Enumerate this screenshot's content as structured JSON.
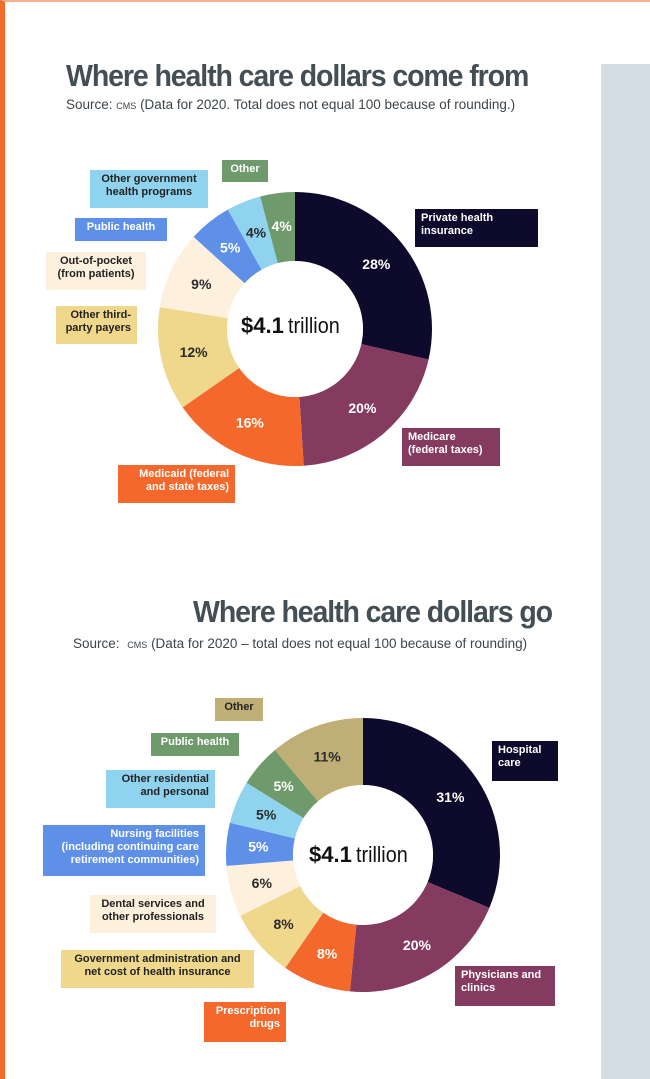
{
  "charts": [
    {
      "title": "Where health care dollars come from",
      "source_prefix": "Source:",
      "source_org": "CMS",
      "source_rest": "(Data for 2020. Total does not equal 100 because of rounding.)",
      "center_amount": "$4.1",
      "center_unit": "trillion"
    },
    {
      "title": "Where health care dollars go",
      "source_prefix": "Source:",
      "source_org": "CMS",
      "source_rest": "(Data for 2020 – total does not equal 100 because of rounding)",
      "center_amount": "$4.1",
      "center_unit": "trillion"
    }
  ],
  "chart_data": [
    {
      "type": "pie",
      "title": "Where health care dollars come from",
      "total": "$4.1 trillion",
      "slices": [
        {
          "label": "Private health insurance",
          "value": 28,
          "display": "28%",
          "color": "#0d0a2c"
        },
        {
          "label": "Medicare (federal taxes)",
          "value": 20,
          "display": "20%",
          "color": "#843b5f"
        },
        {
          "label": "Medicaid (federal and state taxes)",
          "value": 16,
          "display": "16%",
          "color": "#f4692b"
        },
        {
          "label": "Other third-party payers",
          "value": 12,
          "display": "12%",
          "color": "#efd88c"
        },
        {
          "label": "Out-of-pocket (from patients)",
          "value": 9,
          "display": "9%",
          "color": "#fdf0dc"
        },
        {
          "label": "Public health",
          "value": 5,
          "display": "5%",
          "color": "#5f90e8"
        },
        {
          "label": "Other government health programs",
          "value": 4,
          "display": "4%",
          "color": "#8fd3ee"
        },
        {
          "label": "Other",
          "value": 4,
          "display": "4%",
          "color": "#6f9a6c"
        }
      ]
    },
    {
      "type": "pie",
      "title": "Where health care dollars go",
      "total": "$4.1 trillion",
      "slices": [
        {
          "label": "Hospital care",
          "value": 31,
          "display": "31%",
          "color": "#0d0a2c"
        },
        {
          "label": "Physicians and clinics",
          "value": 20,
          "display": "20%",
          "color": "#843b5f"
        },
        {
          "label": "Prescription drugs",
          "value": 8,
          "display": "8%",
          "color": "#f4692b"
        },
        {
          "label": "Government administration and net cost of health insurance",
          "value": 8,
          "display": "8%",
          "color": "#efd88c"
        },
        {
          "label": "Dental services and other professionals",
          "value": 6,
          "display": "6%",
          "color": "#fdf0dc"
        },
        {
          "label": "Nursing facilities (including continuing care retirement communities)",
          "value": 5,
          "display": "5%",
          "color": "#5f90e8"
        },
        {
          "label": "Other residential and personal",
          "value": 5,
          "display": "5%",
          "color": "#8fd3ee"
        },
        {
          "label": "Public health",
          "value": 5,
          "display": "5%",
          "color": "#6f9a6c"
        },
        {
          "label": "Other",
          "value": 11,
          "display": "11%",
          "color": "#bfae76"
        }
      ]
    }
  ],
  "callouts": [
    [
      {
        "lines": [
          "Private health",
          "insurance"
        ],
        "text_color": "#ffffff"
      },
      {
        "lines": [
          "Medicare",
          "(federal taxes)"
        ],
        "text_color": "#ffffff"
      },
      {
        "lines": [
          "Medicaid (federal",
          "and state taxes)"
        ],
        "text_color": "#ffffff"
      },
      {
        "lines": [
          "Other third-",
          "party payers"
        ],
        "text_color": "#222222"
      },
      {
        "lines": [
          "Out-of-pocket",
          "(from patients)"
        ],
        "text_color": "#222222"
      },
      {
        "lines": [
          "Public health"
        ],
        "text_color": "#ffffff"
      },
      {
        "lines": [
          "Other government",
          "health programs"
        ],
        "text_color": "#222222"
      },
      {
        "lines": [
          "Other"
        ],
        "text_color": "#ffffff"
      }
    ],
    [
      {
        "lines": [
          "Hospital",
          "care"
        ],
        "text_color": "#ffffff"
      },
      {
        "lines": [
          "Physicians and",
          "clinics"
        ],
        "text_color": "#ffffff"
      },
      {
        "lines": [
          "Prescription",
          "drugs"
        ],
        "text_color": "#ffffff"
      },
      {
        "lines": [
          "Government administration and",
          "net cost of health insurance"
        ],
        "text_color": "#222222"
      },
      {
        "lines": [
          "Dental services and",
          "other professionals"
        ],
        "text_color": "#222222"
      },
      {
        "lines": [
          "Nursing facilities",
          "(including continuing care",
          "retirement communities)"
        ],
        "text_color": "#ffffff"
      },
      {
        "lines": [
          "Other residential",
          "and personal"
        ],
        "text_color": "#222222"
      },
      {
        "lines": [
          "Public health"
        ],
        "text_color": "#ffffff"
      },
      {
        "lines": [
          "Other"
        ],
        "text_color": "#222222"
      }
    ]
  ],
  "colors": {
    "accent_border": "#f26b2a",
    "side_panel": "#d2dee3",
    "title": "#444e55"
  }
}
